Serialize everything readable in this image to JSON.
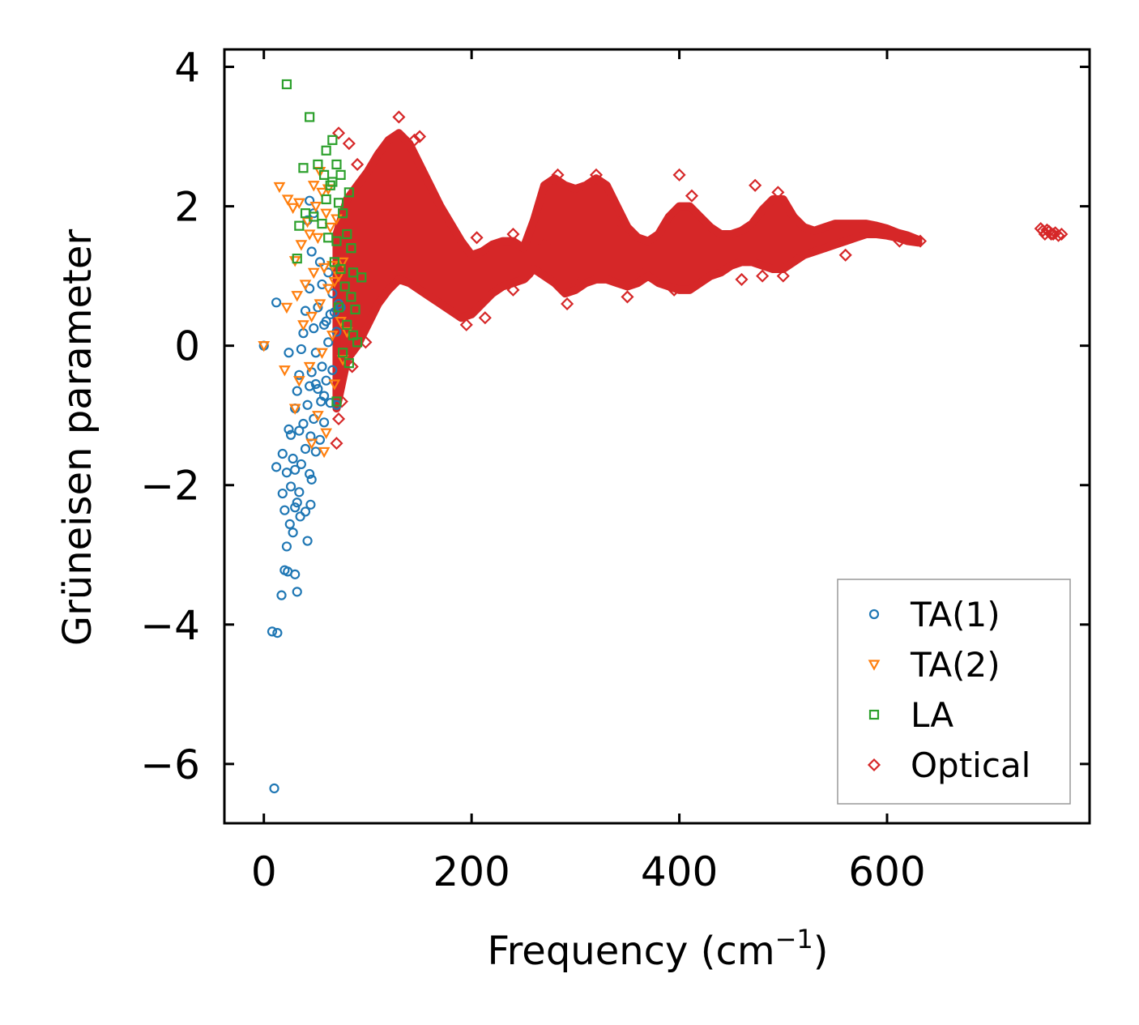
{
  "chart_data": {
    "type": "scatter",
    "xlabel": "Frequency (cm",
    "xlabel_exponent": "−1",
    "xlabel_close": ")",
    "ylabel": "Grüneisen parameter",
    "xlim": [
      -38,
      795
    ],
    "ylim": [
      -6.85,
      4.25
    ],
    "xticks": [
      0,
      200,
      400,
      600
    ],
    "xtick_labels": [
      "0",
      "200",
      "400",
      "600"
    ],
    "yticks": [
      -6,
      -4,
      -2,
      0,
      2,
      4
    ],
    "ytick_labels": [
      "−6",
      "−4",
      "−2",
      "0",
      "2",
      "4"
    ],
    "legend_position": "lower-right",
    "series": [
      {
        "name": "TA(1)",
        "marker": "circle",
        "color": "#1f77b4",
        "points": [
          [
            0,
            0
          ],
          [
            10,
            -6.35
          ],
          [
            8,
            -4.1
          ],
          [
            13,
            -4.12
          ],
          [
            17,
            -3.58
          ],
          [
            32,
            -3.53
          ],
          [
            20,
            -3.22
          ],
          [
            23,
            -3.24
          ],
          [
            30,
            -3.28
          ],
          [
            42,
            -2.8
          ],
          [
            22,
            -2.88
          ],
          [
            28,
            -2.68
          ],
          [
            25,
            -2.56
          ],
          [
            35,
            -2.45
          ],
          [
            40,
            -2.38
          ],
          [
            20,
            -2.36
          ],
          [
            30,
            -2.32
          ],
          [
            45,
            -2.28
          ],
          [
            32,
            -2.25
          ],
          [
            18,
            -2.12
          ],
          [
            26,
            -2.02
          ],
          [
            34,
            -2.1
          ],
          [
            46,
            -1.92
          ],
          [
            12,
            -1.74
          ],
          [
            22,
            -1.82
          ],
          [
            30,
            -1.78
          ],
          [
            36,
            -1.7
          ],
          [
            44,
            -1.84
          ],
          [
            18,
            -1.55
          ],
          [
            28,
            -1.62
          ],
          [
            40,
            -1.48
          ],
          [
            50,
            -1.52
          ],
          [
            26,
            -1.28
          ],
          [
            34,
            -1.22
          ],
          [
            45,
            -1.3
          ],
          [
            54,
            -1.35
          ],
          [
            24,
            -1.2
          ],
          [
            38,
            -1.12
          ],
          [
            48,
            -1.05
          ],
          [
            58,
            -1.1
          ],
          [
            30,
            -0.9
          ],
          [
            42,
            -0.85
          ],
          [
            55,
            -0.8
          ],
          [
            64,
            -0.82
          ],
          [
            32,
            -0.65
          ],
          [
            44,
            -0.58
          ],
          [
            52,
            -0.62
          ],
          [
            60,
            -0.5
          ],
          [
            34,
            -0.42
          ],
          [
            46,
            -0.38
          ],
          [
            56,
            -0.3
          ],
          [
            66,
            -0.35
          ],
          [
            24,
            -0.1
          ],
          [
            36,
            -0.05
          ],
          [
            50,
            -0.1
          ],
          [
            62,
            0.05
          ],
          [
            38,
            0.18
          ],
          [
            48,
            0.25
          ],
          [
            58,
            0.3
          ],
          [
            70,
            0.2
          ],
          [
            40,
            0.5
          ],
          [
            52,
            0.55
          ],
          [
            64,
            0.45
          ],
          [
            72,
            0.6
          ],
          [
            12,
            0.62
          ],
          [
            44,
            0.82
          ],
          [
            56,
            0.88
          ],
          [
            66,
            0.75
          ],
          [
            46,
            1.35
          ],
          [
            54,
            1.2
          ],
          [
            62,
            1.05
          ],
          [
            42,
            1.8
          ],
          [
            48,
            1.9
          ],
          [
            44,
            2.08
          ],
          [
            60,
            0.35
          ],
          [
            68,
            0.48
          ],
          [
            74,
            0.55
          ],
          [
            50,
            -0.55
          ],
          [
            58,
            -0.72
          ],
          [
            70,
            -0.85
          ]
        ]
      },
      {
        "name": "TA(2)",
        "marker": "triangle-down",
        "color": "#ff7f0e",
        "points": [
          [
            0,
            0
          ],
          [
            20,
            -0.35
          ],
          [
            15,
            2.28
          ],
          [
            23,
            2.1
          ],
          [
            28,
            1.98
          ],
          [
            34,
            2.05
          ],
          [
            42,
            1.78
          ],
          [
            50,
            2.0
          ],
          [
            56,
            2.2
          ],
          [
            60,
            1.9
          ],
          [
            30,
            1.22
          ],
          [
            36,
            1.45
          ],
          [
            44,
            1.6
          ],
          [
            52,
            1.55
          ],
          [
            64,
            1.7
          ],
          [
            70,
            1.82
          ],
          [
            22,
            0.55
          ],
          [
            32,
            0.72
          ],
          [
            40,
            0.88
          ],
          [
            48,
            1.05
          ],
          [
            58,
            1.12
          ],
          [
            66,
            1.15
          ],
          [
            72,
            1.0
          ],
          [
            76,
            1.2
          ],
          [
            38,
            0.3
          ],
          [
            46,
            0.42
          ],
          [
            54,
            0.6
          ],
          [
            62,
            0.82
          ],
          [
            68,
            0.92
          ],
          [
            34,
            -0.5
          ],
          [
            44,
            -0.3
          ],
          [
            56,
            -0.1
          ],
          [
            66,
            0.15
          ],
          [
            74,
            0.35
          ],
          [
            30,
            -0.9
          ],
          [
            52,
            -1.0
          ],
          [
            60,
            -1.25
          ],
          [
            58,
            -1.52
          ],
          [
            46,
            -1.4
          ],
          [
            68,
            -0.55
          ],
          [
            76,
            -0.2
          ],
          [
            80,
            0.2
          ],
          [
            62,
            2.25
          ],
          [
            54,
            2.5
          ],
          [
            48,
            2.3
          ]
        ]
      },
      {
        "name": "LA",
        "marker": "square",
        "color": "#2ca02c",
        "points": [
          [
            22,
            3.75
          ],
          [
            44,
            3.28
          ],
          [
            60,
            2.8
          ],
          [
            66,
            2.95
          ],
          [
            70,
            2.6
          ],
          [
            38,
            2.55
          ],
          [
            52,
            2.6
          ],
          [
            58,
            2.45
          ],
          [
            64,
            2.3
          ],
          [
            72,
            2.05
          ],
          [
            76,
            1.9
          ],
          [
            40,
            1.9
          ],
          [
            48,
            1.85
          ],
          [
            56,
            1.75
          ],
          [
            34,
            1.72
          ],
          [
            62,
            1.55
          ],
          [
            70,
            1.5
          ],
          [
            80,
            1.6
          ],
          [
            84,
            1.4
          ],
          [
            32,
            1.25
          ],
          [
            68,
            1.2
          ],
          [
            74,
            1.1
          ],
          [
            86,
            1.05
          ],
          [
            94,
            0.98
          ],
          [
            78,
            0.85
          ],
          [
            84,
            0.7
          ],
          [
            88,
            0.52
          ],
          [
            72,
            0.55
          ],
          [
            80,
            0.3
          ],
          [
            86,
            0.15
          ],
          [
            90,
            0.05
          ],
          [
            76,
            -0.1
          ],
          [
            82,
            -0.25
          ],
          [
            70,
            -0.8
          ],
          [
            60,
            2.1
          ],
          [
            66,
            2.35
          ],
          [
            74,
            2.45
          ],
          [
            82,
            2.2
          ]
        ]
      },
      {
        "name": "Optical",
        "marker": "diamond",
        "color": "#d62728",
        "band": [
          [
            70,
            -0.9,
            1.6
          ],
          [
            80,
            -0.2,
            2.1
          ],
          [
            90,
            0.0,
            2.3
          ],
          [
            100,
            0.3,
            2.5
          ],
          [
            110,
            0.6,
            2.75
          ],
          [
            120,
            0.8,
            2.95
          ],
          [
            130,
            0.95,
            3.05
          ],
          [
            140,
            0.9,
            2.9
          ],
          [
            150,
            0.8,
            2.6
          ],
          [
            160,
            0.7,
            2.3
          ],
          [
            170,
            0.6,
            2.0
          ],
          [
            180,
            0.5,
            1.75
          ],
          [
            190,
            0.4,
            1.5
          ],
          [
            200,
            0.45,
            1.3
          ],
          [
            210,
            0.6,
            1.35
          ],
          [
            220,
            0.75,
            1.45
          ],
          [
            230,
            0.85,
            1.5
          ],
          [
            240,
            0.9,
            1.5
          ],
          [
            250,
            0.95,
            1.4
          ],
          [
            260,
            1.1,
            1.8
          ],
          [
            270,
            1.0,
            2.3
          ],
          [
            280,
            0.9,
            2.4
          ],
          [
            290,
            0.75,
            2.3
          ],
          [
            300,
            0.8,
            2.25
          ],
          [
            310,
            0.9,
            2.3
          ],
          [
            320,
            0.95,
            2.4
          ],
          [
            330,
            0.95,
            2.3
          ],
          [
            340,
            0.9,
            2.0
          ],
          [
            350,
            0.85,
            1.7
          ],
          [
            360,
            0.9,
            1.55
          ],
          [
            370,
            1.0,
            1.5
          ],
          [
            380,
            0.9,
            1.6
          ],
          [
            390,
            0.85,
            1.85
          ],
          [
            400,
            0.8,
            2.0
          ],
          [
            410,
            0.8,
            2.0
          ],
          [
            420,
            0.9,
            1.85
          ],
          [
            430,
            1.0,
            1.7
          ],
          [
            440,
            1.05,
            1.6
          ],
          [
            450,
            1.15,
            1.6
          ],
          [
            460,
            1.2,
            1.65
          ],
          [
            470,
            1.2,
            1.75
          ],
          [
            480,
            1.15,
            1.95
          ],
          [
            490,
            1.1,
            2.1
          ],
          [
            500,
            1.1,
            2.1
          ],
          [
            510,
            1.2,
            1.85
          ],
          [
            520,
            1.3,
            1.7
          ],
          [
            530,
            1.35,
            1.65
          ],
          [
            540,
            1.4,
            1.7
          ],
          [
            550,
            1.45,
            1.75
          ],
          [
            560,
            1.5,
            1.75
          ],
          [
            570,
            1.55,
            1.75
          ],
          [
            580,
            1.6,
            1.75
          ],
          [
            590,
            1.6,
            1.72
          ],
          [
            600,
            1.58,
            1.68
          ],
          [
            610,
            1.55,
            1.62
          ],
          [
            620,
            1.5,
            1.58
          ],
          [
            630,
            1.48,
            1.52
          ]
        ],
        "points": [
          [
            130,
            3.28
          ],
          [
            72,
            3.05
          ],
          [
            82,
            2.9
          ],
          [
            150,
            3.0
          ],
          [
            400,
            2.45
          ],
          [
            473,
            2.3
          ],
          [
            412,
            2.15
          ],
          [
            495,
            2.2
          ],
          [
            90,
            2.6
          ],
          [
            145,
            2.95
          ],
          [
            205,
            1.55
          ],
          [
            240,
            1.6
          ],
          [
            292,
            0.6
          ],
          [
            480,
            1.0
          ],
          [
            460,
            0.95
          ],
          [
            500,
            1.0
          ],
          [
            195,
            0.3
          ],
          [
            213,
            0.4
          ],
          [
            350,
            0.7
          ],
          [
            395,
            0.8
          ],
          [
            70,
            -1.4
          ],
          [
            75,
            -0.8
          ],
          [
            72,
            -1.05
          ],
          [
            98,
            0.05
          ],
          [
            85,
            -0.3
          ],
          [
            270,
            1.45
          ],
          [
            283,
            2.45
          ],
          [
            320,
            2.45
          ],
          [
            342,
            1.8
          ],
          [
            302,
            0.9
          ],
          [
            365,
            1.05
          ],
          [
            240,
            0.8
          ],
          [
            253,
            1.0
          ],
          [
            560,
            1.3
          ],
          [
            612,
            1.5
          ],
          [
            632,
            1.5
          ],
          [
            750,
            1.65
          ],
          [
            752,
            1.6
          ],
          [
            756,
            1.64
          ],
          [
            760,
            1.6
          ],
          [
            765,
            1.58
          ],
          [
            748,
            1.68
          ],
          [
            754,
            1.66
          ],
          [
            762,
            1.62
          ],
          [
            758,
            1.6
          ],
          [
            768,
            1.6
          ]
        ]
      }
    ]
  }
}
